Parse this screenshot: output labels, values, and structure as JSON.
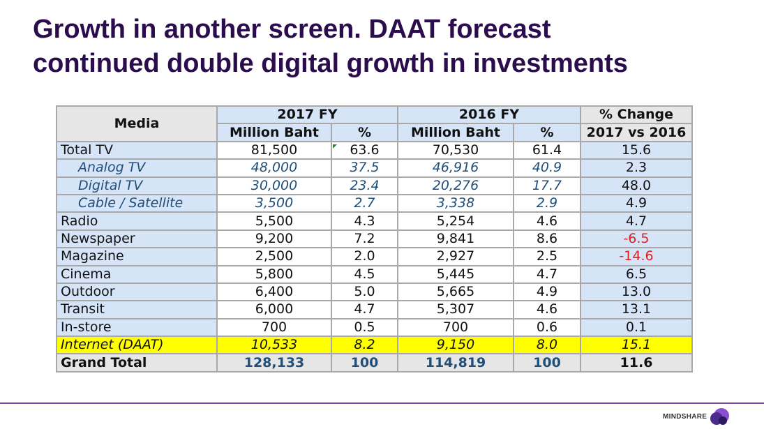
{
  "title": {
    "line1": "Growth in another screen. DAAT forecast",
    "line2": "continued double digital growth in investments"
  },
  "table": {
    "headers": {
      "media": "Media",
      "fy2017": "2017 FY",
      "fy2016": "2016 FY",
      "change_line1": "% Change",
      "change_line2": "2017 vs 2016",
      "million_baht": "Million Baht",
      "pct": "%"
    },
    "rows": [
      {
        "media": "Total TV",
        "v2017": "81,500",
        "p2017": "63.6",
        "v2016": "70,530",
        "p2016": "61.4",
        "change": "15.6"
      },
      {
        "media": "Analog TV",
        "v2017": "48,000",
        "p2017": "37.5",
        "v2016": "46,916",
        "p2016": "40.9",
        "change": "2.3"
      },
      {
        "media": "Digital TV",
        "v2017": "30,000",
        "p2017": "23.4",
        "v2016": "20,276",
        "p2016": "17.7",
        "change": "48.0"
      },
      {
        "media": "Cable / Satellite",
        "v2017": "3,500",
        "p2017": "2.7",
        "v2016": "3,338",
        "p2016": "2.9",
        "change": "4.9"
      },
      {
        "media": "Radio",
        "v2017": "5,500",
        "p2017": "4.3",
        "v2016": "5,254",
        "p2016": "4.6",
        "change": "4.7"
      },
      {
        "media": "Newspaper",
        "v2017": "9,200",
        "p2017": "7.2",
        "v2016": "9,841",
        "p2016": "8.6",
        "change": "-6.5"
      },
      {
        "media": "Magazine",
        "v2017": "2,500",
        "p2017": "2.0",
        "v2016": "2,927",
        "p2016": "2.5",
        "change": "-14.6"
      },
      {
        "media": "Cinema",
        "v2017": "5,800",
        "p2017": "4.5",
        "v2016": "5,445",
        "p2016": "4.7",
        "change": "6.5"
      },
      {
        "media": "Outdoor",
        "v2017": "6,400",
        "p2017": "5.0",
        "v2016": "5,665",
        "p2016": "4.9",
        "change": "13.0"
      },
      {
        "media": "Transit",
        "v2017": "6,000",
        "p2017": "4.7",
        "v2016": "5,307",
        "p2016": "4.6",
        "change": "13.1"
      },
      {
        "media": "In-store",
        "v2017": "700",
        "p2017": "0.5",
        "v2016": "700",
        "p2016": "0.6",
        "change": "0.1"
      },
      {
        "media": "Internet (DAAT)",
        "v2017": "10,533",
        "p2017": "8.2",
        "v2016": "9,150",
        "p2016": "8.0",
        "change": "15.1"
      },
      {
        "media": "Grand Total",
        "v2017": "128,133",
        "p2017": "100",
        "v2016": "114,819",
        "p2016": "100",
        "change": "11.6"
      }
    ]
  },
  "colors": {
    "title": "#2b0d4d",
    "header_blue": "#d6e4f7",
    "header_grey": "#e6e6e6",
    "subrow_text": "#1f4e79",
    "negative": "#e11d1d",
    "highlight": "#ffff00",
    "footer_line": "#7b4a96"
  },
  "logo": {
    "text": "MINDSHARE"
  }
}
